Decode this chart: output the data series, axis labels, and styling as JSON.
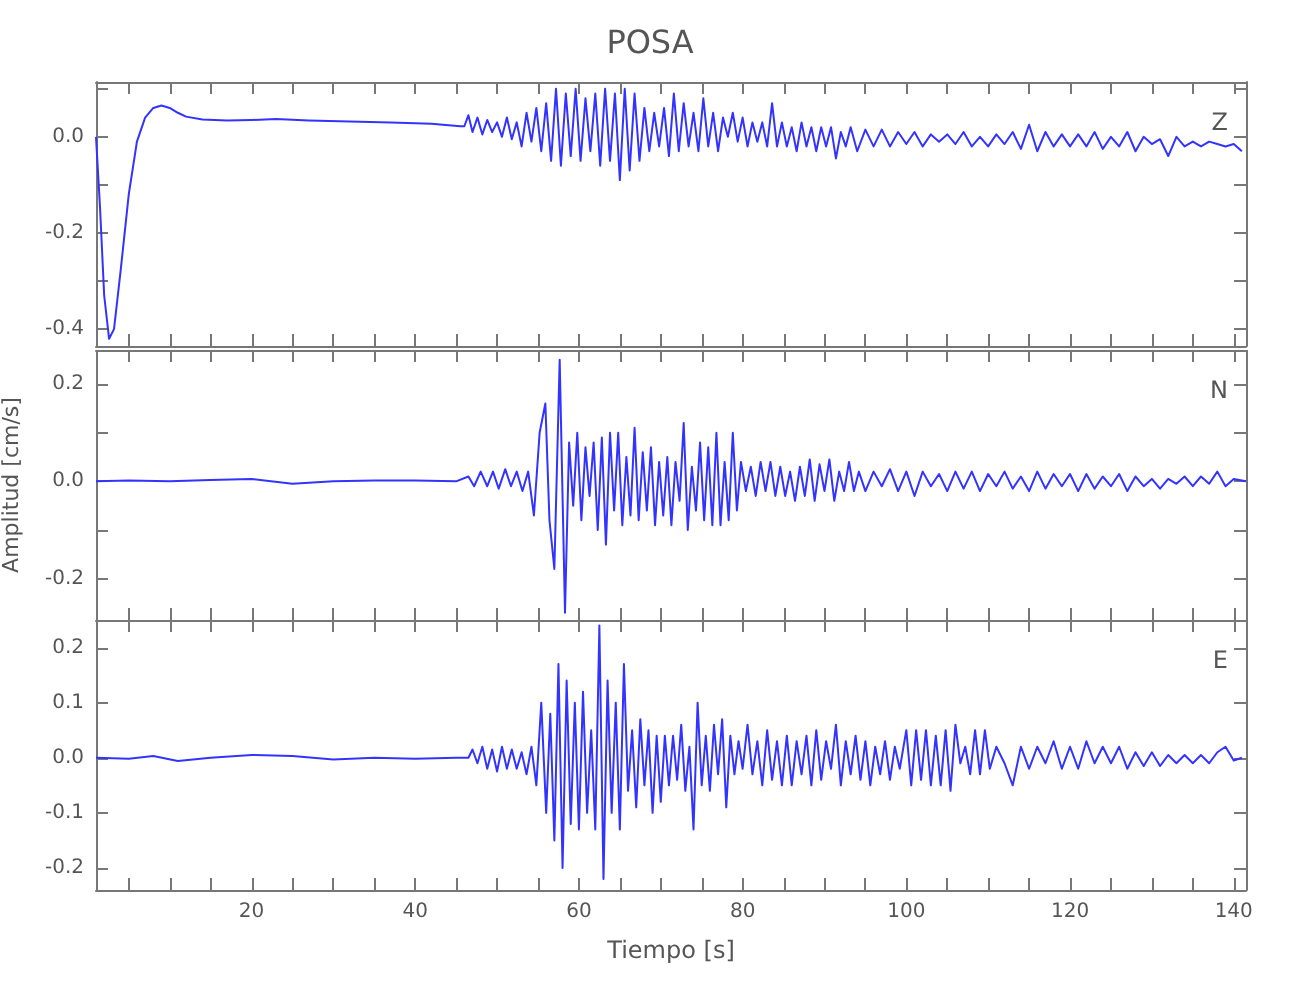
{
  "chart_data": [
    {
      "type": "line",
      "title": "POSA",
      "annotations": [
        "Z"
      ],
      "tick_labels": "y",
      "xlim": [
        1,
        141.5
      ],
      "ylim": [
        -0.435,
        0.114
      ],
      "xticks": [
        {
          "value": 5,
          "label": null
        },
        {
          "value": 10,
          "label": null
        },
        {
          "value": 15,
          "label": null
        },
        20,
        {
          "value": 25,
          "label": null
        },
        {
          "value": 30,
          "label": null
        },
        {
          "value": 35,
          "label": null
        },
        40,
        {
          "value": 45,
          "label": null
        },
        {
          "value": 50,
          "label": null
        },
        {
          "value": 55,
          "label": null
        },
        60,
        {
          "value": 65,
          "label": null
        },
        {
          "value": 70,
          "label": null
        },
        {
          "value": 75,
          "label": null
        },
        80,
        {
          "value": 85,
          "label": null
        },
        {
          "value": 90,
          "label": null
        },
        {
          "value": 95,
          "label": null
        },
        100,
        {
          "value": 105,
          "label": null
        },
        {
          "value": 110,
          "label": null
        },
        {
          "value": 115,
          "label": null
        },
        120,
        {
          "value": 125,
          "label": null
        },
        {
          "value": 130,
          "label": null
        },
        {
          "value": 135,
          "label": null
        },
        140
      ],
      "yticks": [
        -0.4,
        {
          "value": -0.3,
          "label": null
        },
        -0.2,
        {
          "value": -0.1,
          "label": null
        },
        {
          "value": 0,
          "label": "0.0"
        },
        {
          "value": 0.1,
          "label": null
        }
      ],
      "x": [
        1,
        1.5,
        2,
        2.6,
        3.2,
        4,
        5,
        6,
        7,
        8,
        9,
        10,
        11,
        12,
        14,
        17,
        20,
        23,
        27,
        32,
        37,
        42,
        45.5,
        46,
        46.5,
        47,
        47.6,
        48.2,
        48.8,
        49.4,
        50,
        50.6,
        51.2,
        51.8,
        52.4,
        53,
        53.6,
        54.2,
        54.8,
        55.4,
        56,
        56.6,
        57.2,
        57.8,
        58.4,
        59,
        59.6,
        60.2,
        60.8,
        61.4,
        62,
        62.6,
        63.2,
        63.8,
        64.4,
        65,
        65.6,
        66.2,
        66.8,
        67.4,
        68,
        68.6,
        69.2,
        69.8,
        70.4,
        71,
        71.6,
        72.2,
        72.8,
        73.4,
        74,
        74.6,
        75.2,
        75.8,
        76.4,
        77,
        77.6,
        78.2,
        78.8,
        79.4,
        80,
        80.6,
        81.2,
        81.8,
        82.4,
        83,
        83.6,
        84.2,
        84.8,
        85.4,
        86,
        86.6,
        87.2,
        87.8,
        88.4,
        89,
        89.6,
        90.2,
        90.8,
        91.4,
        92,
        92.6,
        93.2,
        94,
        95,
        96,
        97,
        98,
        99,
        100,
        101,
        102,
        103,
        104,
        105,
        106,
        107,
        108,
        109,
        110,
        111,
        112,
        113,
        114,
        115,
        116,
        117,
        118,
        119,
        120,
        121,
        122,
        123,
        124,
        125,
        126,
        127,
        128,
        129,
        130,
        131,
        132,
        133,
        134,
        135,
        136,
        137,
        138,
        139,
        140,
        141
      ],
      "series": [
        {
          "color": "#3333ff",
          "values": [
            0.0,
            -0.15,
            -0.33,
            -0.42,
            -0.4,
            -0.28,
            -0.12,
            -0.01,
            0.04,
            0.06,
            0.065,
            0.06,
            0.05,
            0.042,
            0.036,
            0.034,
            0.035,
            0.037,
            0.034,
            0.032,
            0.03,
            0.027,
            0.022,
            0.022,
            0.045,
            0.01,
            0.04,
            0.005,
            0.035,
            0.01,
            0.03,
            0.0,
            0.04,
            -0.005,
            0.03,
            -0.02,
            0.05,
            -0.01,
            0.06,
            -0.03,
            0.07,
            -0.05,
            0.1,
            -0.06,
            0.09,
            -0.04,
            0.1,
            -0.05,
            0.08,
            -0.03,
            0.09,
            -0.06,
            0.1,
            -0.05,
            0.09,
            -0.09,
            0.1,
            -0.07,
            0.09,
            -0.05,
            0.06,
            -0.03,
            0.05,
            -0.02,
            0.06,
            -0.04,
            0.09,
            -0.03,
            0.07,
            -0.02,
            0.05,
            -0.03,
            0.08,
            -0.02,
            0.05,
            -0.03,
            0.04,
            0.0,
            0.05,
            -0.01,
            0.04,
            -0.02,
            0.03,
            -0.01,
            0.03,
            -0.02,
            0.07,
            -0.02,
            0.03,
            -0.02,
            0.02,
            -0.03,
            0.03,
            -0.02,
            0.02,
            -0.03,
            0.02,
            -0.02,
            0.02,
            -0.045,
            0.01,
            -0.02,
            0.02,
            -0.03,
            0.015,
            -0.02,
            0.015,
            -0.02,
            0.01,
            -0.015,
            0.01,
            -0.02,
            0.005,
            -0.01,
            0.005,
            -0.015,
            0.01,
            -0.02,
            0.0,
            -0.02,
            0.005,
            -0.015,
            0.01,
            -0.025,
            0.025,
            -0.03,
            0.01,
            -0.02,
            0.005,
            -0.02,
            0.005,
            -0.02,
            0.01,
            -0.025,
            0.0,
            -0.02,
            0.01,
            -0.03,
            0.0,
            -0.015,
            -0.005,
            -0.04,
            0.0,
            -0.02,
            -0.01,
            -0.02,
            -0.01,
            -0.015,
            -0.02,
            -0.015,
            -0.03
          ]
        }
      ]
    },
    {
      "type": "line",
      "ylabel": "Amplitud [cm/s]",
      "annotations": [
        "N"
      ],
      "tick_labels": "y",
      "xlim": [
        1,
        141.5
      ],
      "ylim": [
        -0.285,
        0.27
      ],
      "xticks": [
        {
          "value": 5,
          "label": null
        },
        {
          "value": 10,
          "label": null
        },
        {
          "value": 15,
          "label": null
        },
        20,
        {
          "value": 25,
          "label": null
        },
        {
          "value": 30,
          "label": null
        },
        {
          "value": 35,
          "label": null
        },
        40,
        {
          "value": 45,
          "label": null
        },
        {
          "value": 50,
          "label": null
        },
        {
          "value": 55,
          "label": null
        },
        60,
        {
          "value": 65,
          "label": null
        },
        {
          "value": 70,
          "label": null
        },
        {
          "value": 75,
          "label": null
        },
        80,
        {
          "value": 85,
          "label": null
        },
        {
          "value": 90,
          "label": null
        },
        {
          "value": 95,
          "label": null
        },
        100,
        {
          "value": 105,
          "label": null
        },
        {
          "value": 110,
          "label": null
        },
        {
          "value": 115,
          "label": null
        },
        120,
        {
          "value": 125,
          "label": null
        },
        {
          "value": 130,
          "label": null
        },
        {
          "value": 135,
          "label": null
        },
        140
      ],
      "yticks": [
        -0.2,
        {
          "value": -0.1,
          "label": null
        },
        {
          "value": 0,
          "label": "0.0"
        },
        {
          "value": 0.1,
          "label": null
        },
        0.2
      ],
      "x": [
        1,
        5,
        10,
        15,
        20,
        25,
        30,
        35,
        40,
        45,
        46.5,
        47.2,
        48,
        48.8,
        49.5,
        50.2,
        51,
        51.7,
        52.4,
        53.1,
        53.8,
        54.5,
        55.2,
        55.9,
        56.4,
        57,
        57.65,
        58.3,
        58.8,
        59.3,
        59.8,
        60.3,
        60.8,
        61.3,
        61.8,
        62.3,
        62.8,
        63.3,
        63.8,
        64.3,
        64.8,
        65.3,
        65.8,
        66.3,
        66.8,
        67.3,
        67.8,
        68.3,
        68.8,
        69.3,
        69.8,
        70.3,
        70.8,
        71.3,
        71.8,
        72.3,
        72.8,
        73.3,
        73.8,
        74.3,
        74.8,
        75.3,
        75.8,
        76.3,
        76.8,
        77.3,
        77.8,
        78.3,
        78.8,
        79.3,
        79.8,
        80.4,
        81,
        81.6,
        82.2,
        82.8,
        83.4,
        84,
        84.6,
        85.2,
        85.8,
        86.4,
        87,
        87.6,
        88.2,
        88.8,
        89.4,
        90,
        90.6,
        91.2,
        91.8,
        92.4,
        93,
        93.6,
        94.2,
        95,
        96,
        97,
        98,
        99,
        100,
        101,
        102,
        103,
        104,
        105,
        106,
        107,
        108,
        109,
        110,
        111,
        112,
        113,
        114,
        115,
        116,
        117,
        118,
        119,
        120,
        121,
        122,
        123,
        124,
        125,
        126,
        127,
        128,
        129,
        130,
        131,
        132,
        133,
        134,
        135,
        136,
        137,
        138,
        139,
        140,
        141.5
      ],
      "series": [
        {
          "color": "#3333ff",
          "values": [
            0.0,
            0.002,
            0.0,
            0.003,
            0.005,
            -0.005,
            0.0,
            0.002,
            0.002,
            0.0,
            0.01,
            -0.01,
            0.02,
            -0.01,
            0.02,
            -0.015,
            0.025,
            -0.01,
            0.02,
            -0.02,
            0.02,
            -0.07,
            0.1,
            0.16,
            -0.08,
            -0.18,
            0.25,
            -0.27,
            0.08,
            -0.05,
            0.1,
            -0.08,
            0.07,
            -0.03,
            0.08,
            -0.1,
            0.09,
            -0.13,
            0.1,
            -0.06,
            0.1,
            -0.09,
            0.05,
            -0.07,
            0.11,
            -0.08,
            0.06,
            -0.06,
            0.07,
            -0.09,
            0.04,
            -0.07,
            0.05,
            -0.09,
            0.04,
            -0.04,
            0.12,
            -0.1,
            0.03,
            -0.06,
            0.08,
            -0.08,
            0.07,
            -0.09,
            0.1,
            -0.09,
            0.04,
            -0.08,
            0.1,
            -0.06,
            0.04,
            -0.02,
            0.03,
            -0.03,
            0.04,
            -0.02,
            0.04,
            -0.03,
            0.03,
            -0.03,
            0.02,
            -0.04,
            0.03,
            -0.03,
            0.045,
            -0.04,
            0.035,
            -0.02,
            0.045,
            -0.04,
            0.02,
            -0.02,
            0.04,
            -0.02,
            0.02,
            -0.02,
            0.02,
            -0.01,
            0.025,
            -0.02,
            0.02,
            -0.03,
            0.02,
            -0.01,
            0.015,
            -0.02,
            0.02,
            -0.015,
            0.02,
            -0.02,
            0.015,
            -0.01,
            0.02,
            -0.015,
            0.01,
            -0.02,
            0.02,
            -0.015,
            0.015,
            -0.01,
            0.015,
            -0.02,
            0.015,
            -0.015,
            0.01,
            -0.01,
            0.015,
            -0.02,
            0.01,
            -0.01,
            0.005,
            -0.015,
            0.005,
            -0.005,
            0.01,
            -0.01,
            0.01,
            -0.005,
            0.02,
            -0.01,
            0.005,
            0.0
          ]
        }
      ]
    },
    {
      "type": "line",
      "xlabel": "Tiempo [s]",
      "annotations": [
        "E"
      ],
      "xlim": [
        1,
        141.5
      ],
      "ylim": [
        -0.24,
        0.25
      ],
      "xticks": [
        {
          "value": 5,
          "label": null
        },
        {
          "value": 10,
          "label": null
        },
        {
          "value": 15,
          "label": null
        },
        20,
        {
          "value": 25,
          "label": null
        },
        {
          "value": 30,
          "label": null
        },
        {
          "value": 35,
          "label": null
        },
        40,
        {
          "value": 45,
          "label": null
        },
        {
          "value": 50,
          "label": null
        },
        {
          "value": 55,
          "label": null
        },
        60,
        {
          "value": 65,
          "label": null
        },
        {
          "value": 70,
          "label": null
        },
        {
          "value": 75,
          "label": null
        },
        80,
        {
          "value": 85,
          "label": null
        },
        {
          "value": 90,
          "label": null
        },
        {
          "value": 95,
          "label": null
        },
        100,
        {
          "value": 105,
          "label": null
        },
        {
          "value": 110,
          "label": null
        },
        {
          "value": 115,
          "label": null
        },
        120,
        {
          "value": 125,
          "label": null
        },
        {
          "value": 130,
          "label": null
        },
        {
          "value": 135,
          "label": null
        },
        140
      ],
      "yticks": [
        -0.2,
        -0.1,
        {
          "value": 0,
          "label": "0.0"
        },
        0.1,
        0.2
      ],
      "x": [
        1,
        5,
        8,
        11,
        15,
        20,
        25,
        30,
        35,
        40,
        45,
        46.5,
        47,
        47.6,
        48.2,
        48.8,
        49.4,
        50,
        50.6,
        51.2,
        51.8,
        52.4,
        53,
        53.6,
        54.2,
        54.8,
        55.4,
        56,
        56.5,
        57,
        57.5,
        58,
        58.5,
        59,
        59.5,
        60,
        60.5,
        61,
        61.5,
        62,
        62.5,
        63,
        63.5,
        64,
        64.5,
        65,
        65.5,
        66,
        66.5,
        67,
        67.5,
        68,
        68.5,
        69,
        69.5,
        70,
        70.5,
        71,
        71.5,
        72,
        72.5,
        73,
        73.5,
        74,
        74.5,
        75,
        75.5,
        76,
        76.5,
        77,
        77.5,
        78,
        78.5,
        79,
        79.5,
        80,
        80.6,
        81.2,
        81.8,
        82.4,
        83,
        83.6,
        84.2,
        84.8,
        85.4,
        86,
        86.6,
        87.2,
        87.8,
        88.4,
        89,
        89.6,
        90.2,
        90.8,
        91.4,
        92,
        92.6,
        93.2,
        93.8,
        94.4,
        95,
        95.6,
        96.2,
        96.8,
        97.4,
        98,
        98.6,
        99.2,
        100,
        100.6,
        101.2,
        101.8,
        102.4,
        103,
        103.6,
        104.2,
        104.8,
        105.4,
        106,
        106.6,
        107.2,
        107.8,
        108.4,
        109,
        109.6,
        110.2,
        111,
        112,
        113,
        114,
        115,
        116,
        117,
        118,
        119,
        120,
        121,
        122,
        123,
        124,
        125,
        126,
        127,
        128,
        129,
        130,
        131,
        132,
        133,
        134,
        135,
        136,
        137,
        138,
        139,
        140,
        141
      ],
      "series": [
        {
          "color": "#3333ff",
          "values": [
            0.0,
            -0.002,
            0.003,
            -0.006,
            0.0,
            0.005,
            0.003,
            -0.003,
            0.0,
            -0.002,
            0.0,
            0.0,
            0.015,
            -0.01,
            0.02,
            -0.02,
            0.015,
            -0.025,
            0.02,
            -0.02,
            0.015,
            -0.02,
            0.01,
            -0.03,
            0.02,
            -0.05,
            0.1,
            -0.1,
            0.08,
            -0.15,
            0.17,
            -0.2,
            0.14,
            -0.12,
            0.1,
            -0.13,
            0.12,
            -0.1,
            0.05,
            -0.13,
            0.24,
            -0.22,
            0.14,
            -0.1,
            0.1,
            -0.13,
            0.17,
            -0.06,
            0.05,
            -0.09,
            0.07,
            -0.05,
            0.05,
            -0.1,
            0.04,
            -0.08,
            0.04,
            -0.05,
            0.04,
            -0.04,
            0.06,
            -0.06,
            0.02,
            -0.13,
            0.1,
            -0.05,
            0.04,
            -0.06,
            0.06,
            -0.03,
            0.07,
            -0.09,
            0.04,
            -0.03,
            0.03,
            -0.02,
            0.06,
            -0.03,
            0.03,
            -0.05,
            0.05,
            -0.04,
            0.03,
            -0.05,
            0.04,
            -0.05,
            0.03,
            -0.03,
            0.04,
            -0.05,
            0.05,
            -0.04,
            0.03,
            -0.02,
            0.06,
            -0.05,
            0.03,
            -0.03,
            0.04,
            -0.04,
            0.03,
            -0.05,
            0.02,
            -0.03,
            0.03,
            -0.04,
            0.02,
            -0.02,
            0.05,
            -0.05,
            0.05,
            -0.04,
            0.05,
            -0.05,
            0.04,
            -0.05,
            0.05,
            -0.06,
            0.06,
            -0.01,
            0.02,
            -0.03,
            0.05,
            -0.03,
            0.05,
            -0.02,
            0.02,
            -0.01,
            -0.05,
            0.02,
            -0.02,
            0.02,
            -0.01,
            0.03,
            -0.02,
            0.02,
            -0.02,
            0.03,
            -0.01,
            0.02,
            -0.01,
            0.02,
            -0.02,
            0.01,
            -0.015,
            0.01,
            -0.015,
            0.005,
            -0.01,
            0.005,
            -0.01,
            0.005,
            -0.01,
            0.01,
            0.02,
            -0.005,
            0.0
          ]
        }
      ]
    }
  ]
}
